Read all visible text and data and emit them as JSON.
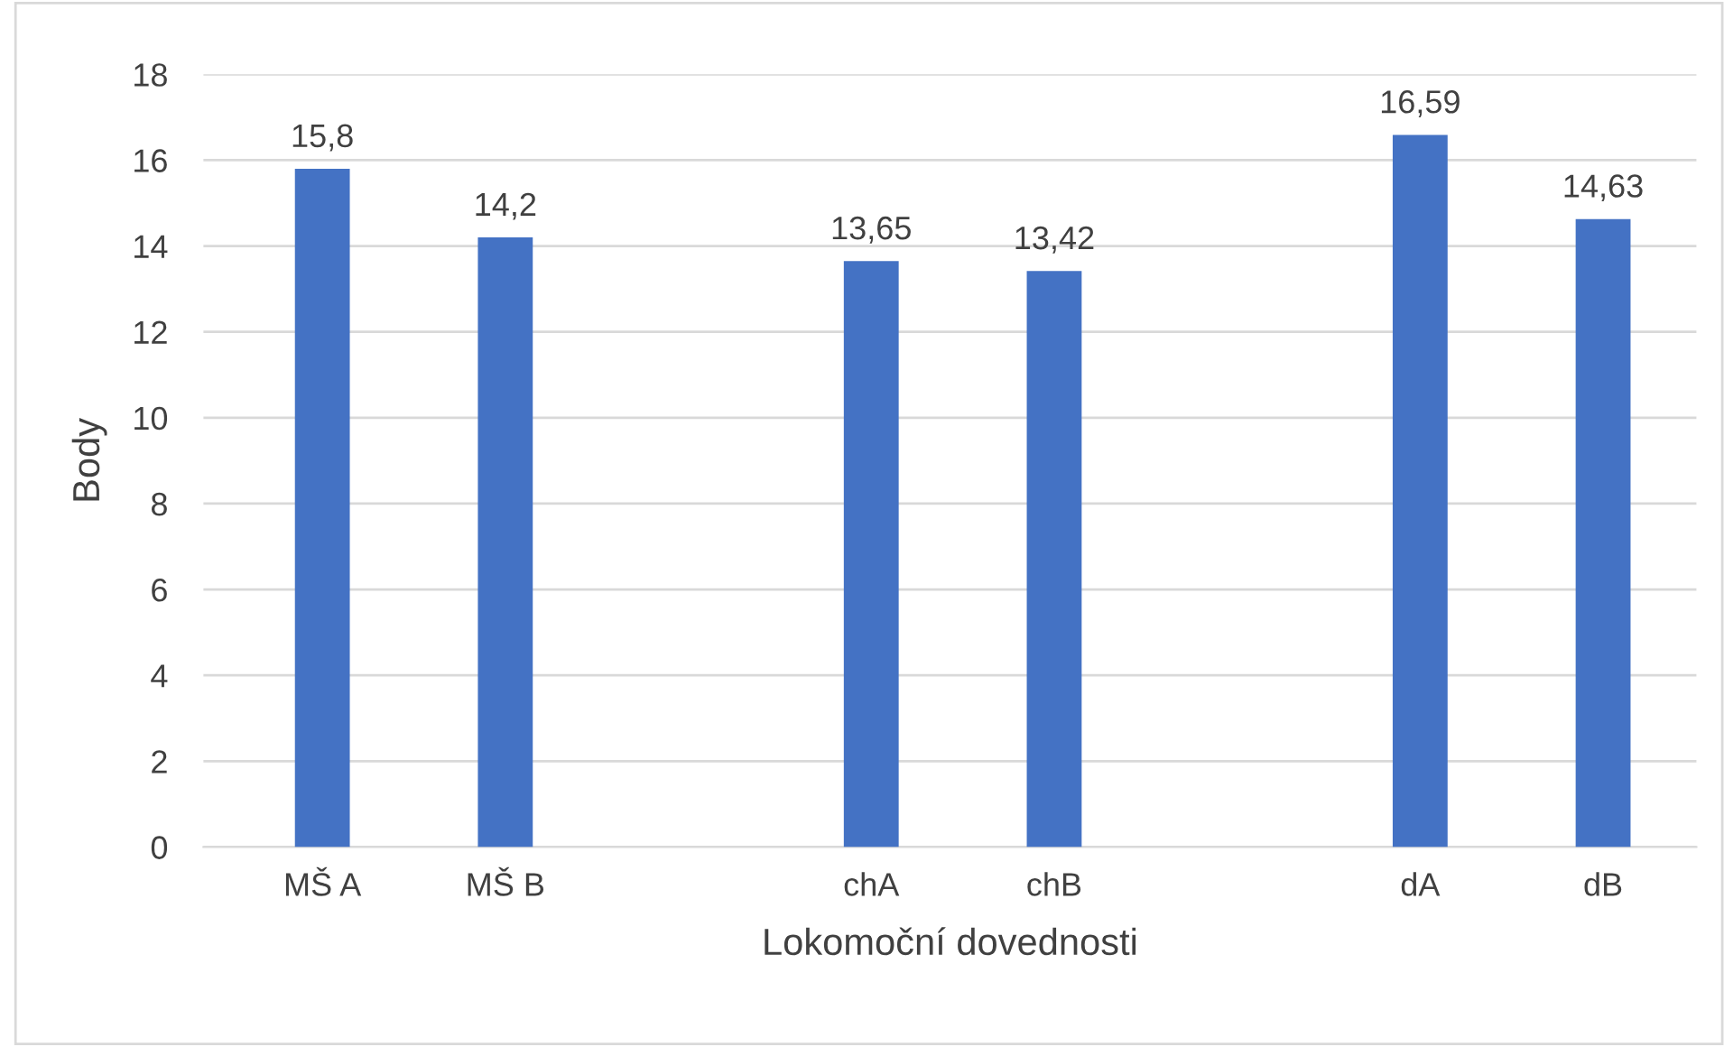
{
  "chart_data": {
    "type": "bar",
    "xlabel": "Lokomoční dovednosti",
    "ylabel": "Body",
    "categories": [
      "MŠ A",
      "MŠ B",
      null,
      "chA",
      "chB",
      null,
      "dA",
      "dB"
    ],
    "values": [
      15.8,
      14.2,
      null,
      13.65,
      13.42,
      null,
      16.59,
      14.63
    ],
    "value_labels": [
      "15,8",
      "14,2",
      null,
      "13,65",
      "13,42",
      null,
      "16,59",
      "14,63"
    ],
    "color": "#4472c4",
    "ylim": [
      0,
      18
    ],
    "yticks": [
      0,
      2,
      4,
      6,
      8,
      10,
      12,
      14,
      16,
      18
    ],
    "grid": "y",
    "legend": false
  }
}
